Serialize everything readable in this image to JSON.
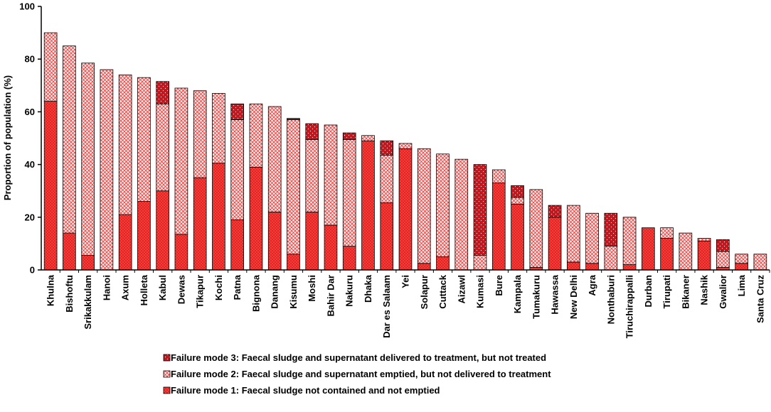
{
  "chart_data": {
    "type": "bar",
    "stacked": true,
    "title": "",
    "xlabel": "",
    "ylabel": "Proportion of population (%)",
    "ylim": [
      0,
      100
    ],
    "yticks": [
      0,
      20,
      40,
      60,
      80,
      100
    ],
    "grid": false,
    "legend_position": "bottom",
    "categories": [
      "Khulna",
      "Bishoftu",
      "Srikakkulam",
      "Hanoi",
      "Axum",
      "Holleta",
      "Kabul",
      "Dewas",
      "Tikapur",
      "Kochi",
      "Patna",
      "Bignona",
      "Danang",
      "Kisumu",
      "Moshi",
      "Bahir Dar",
      "Nakuru",
      "Dhaka",
      "Dar es Salaam",
      "Yei",
      "Solapur",
      "Cuttack",
      "Aizawl",
      "Kumasi",
      "Bure",
      "Kampala",
      "Tumakuru",
      "Hawassa",
      "New Delhi",
      "Agra",
      "Nonthaburi",
      "Tiruchirappalli",
      "Durban",
      "Tirupati",
      "Bikaner",
      "Nashik",
      "Gwalior",
      "Lima",
      "Santa Cruz"
    ],
    "series": [
      {
        "name": "Failure mode 1: Faecal sludge not contained and not emptied",
        "color": "#e8231f",
        "values": [
          64,
          14,
          5.5,
          0,
          21,
          26,
          30,
          13.5,
          35,
          40.5,
          19,
          39,
          22,
          6,
          22,
          17,
          9,
          49,
          25.5,
          46,
          2.5,
          5,
          0,
          0,
          33,
          25,
          1,
          20,
          3,
          2.5,
          0,
          2,
          16,
          12,
          0,
          11,
          1,
          2.5,
          0
        ]
      },
      {
        "name": "Failure mode 2: Faecal sludge and supernatant emptied, but not delivered to treatment",
        "color": "#f7b8b8",
        "values": [
          26,
          71,
          73,
          76,
          53,
          47,
          33,
          55.5,
          33,
          26.5,
          38,
          24,
          40,
          51,
          27.5,
          38,
          40.5,
          2,
          18,
          2,
          43.5,
          39,
          42,
          5.5,
          5,
          2.5,
          29.5,
          0,
          21.5,
          19,
          9,
          18,
          0,
          4,
          14,
          1,
          6,
          3.5,
          6
        ]
      },
      {
        "name": "Failure mode 3: Faecal sludge and supernatant delivered to treatment, but not treated",
        "color": "#c4161c",
        "values": [
          0,
          0,
          0,
          0,
          0,
          0,
          8.5,
          0,
          0,
          0,
          6,
          0,
          0,
          0.5,
          6,
          0,
          2.5,
          0,
          5.5,
          0,
          0,
          0,
          0,
          34.5,
          0,
          4.5,
          0,
          4.5,
          0,
          0,
          12.5,
          0,
          0,
          0,
          0,
          0,
          4.5,
          0,
          0
        ]
      }
    ],
    "legend": [
      "Failure mode 3: Faecal sludge and supernatant delivered to treatment, but not treated",
      "Failure mode 2: Faecal sludge and supernatant emptied, but not delivered to treatment",
      "Failure mode 1: Faecal sludge not contained and not emptied"
    ]
  }
}
